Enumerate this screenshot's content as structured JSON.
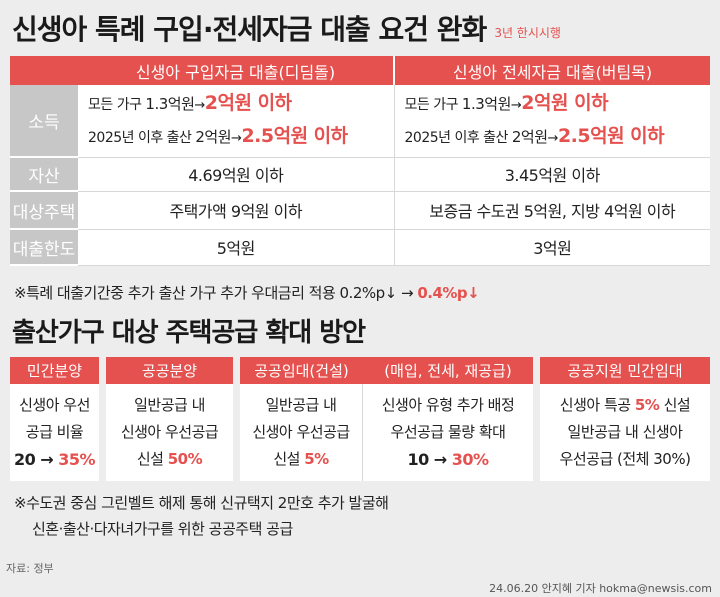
{
  "header": {
    "title": "신생아 특례 구입·전세자금 대출 요건 완화",
    "note": "3년 한시시행"
  },
  "loan_table": {
    "columns": [
      "신생아 구입자금 대출(디딤돌)",
      "신생아 전세자금 대출(버팀목)"
    ],
    "rows": {
      "income": {
        "label": "소득",
        "col1": {
          "line1_prefix": "모든 가구 ",
          "line1_old": "1.3억원",
          "arrow": "→",
          "line1_new": "2억원 이하",
          "line2_prefix": "2025년 이후 출산 ",
          "line2_old": "2억원",
          "line2_new": "2.5억원 이하"
        },
        "col2": {
          "line1_prefix": "모든 가구 ",
          "line1_old": "1.3억원",
          "arrow": "→",
          "line1_new": "2억원 이하",
          "line2_prefix": "2025년 이후 출산 ",
          "line2_old": "2억원",
          "line2_new": "2.5억원 이하"
        }
      },
      "asset": {
        "label": "자산",
        "col1": "4.69억원 이하",
        "col2": "3.45억원 이하"
      },
      "house": {
        "label": "대상주택",
        "col1": "주택가액 9억원 이하",
        "col2": "보증금 수도권 5억원, 지방 4억원 이하"
      },
      "limit": {
        "label": "대출한도",
        "col1": "5억원",
        "col2": "3억원"
      }
    }
  },
  "note1": {
    "text": "※특례 대출기간중 추가 출산 가구 추가 우대금리 적용 0.2%p↓ → ",
    "highlight": "0.4%p↓"
  },
  "supply": {
    "title": "출산가구 대상 주택공급 확대 방안",
    "boxes": {
      "private_sale": {
        "header": "민간분양",
        "line1": "신생아 우선",
        "line2": "공급 비율",
        "value_old": "20 → ",
        "value_new": "35%"
      },
      "public_sale": {
        "header": "공공분양",
        "line1": "일반공급 내",
        "line2": "신생아 우선공급",
        "line3_prefix": "신설 ",
        "line3_value": "50%"
      },
      "public_rental": {
        "header_left": "공공임대(건설)",
        "header_right": "(매입, 전세, 재공급)",
        "left_line1": "일반공급 내",
        "left_line2": "신생아 우선공급",
        "left_line3_prefix": "신설 ",
        "left_line3_value": "5%",
        "right_line1": "신생아 유형 추가 배정",
        "right_line2": "우선공급 물량 확대",
        "right_value_old": "10 → ",
        "right_value_new": "30%"
      },
      "private_rental": {
        "header": "공공지원 민간임대",
        "line1_prefix": "신생아 특공 ",
        "line1_value": "5%",
        "line1_suffix": " 신설",
        "line2": "일반공급 내 신생아",
        "line3": "우선공급 (전체 30%)"
      }
    }
  },
  "note2": {
    "line1": "※수도권 중심 그린벨트 해제 통해 신규택지 2만호 추가 발굴해",
    "line2": "신혼·출산·다자녀가구를 위한 공공주택 공급"
  },
  "source": "자료: 정부",
  "credit": "24.06.20 안지혜 기자 hokma@newsis.com",
  "colors": {
    "accent": "#e5514f",
    "label_bg": "#c7c7c7",
    "background": "#ededed"
  }
}
